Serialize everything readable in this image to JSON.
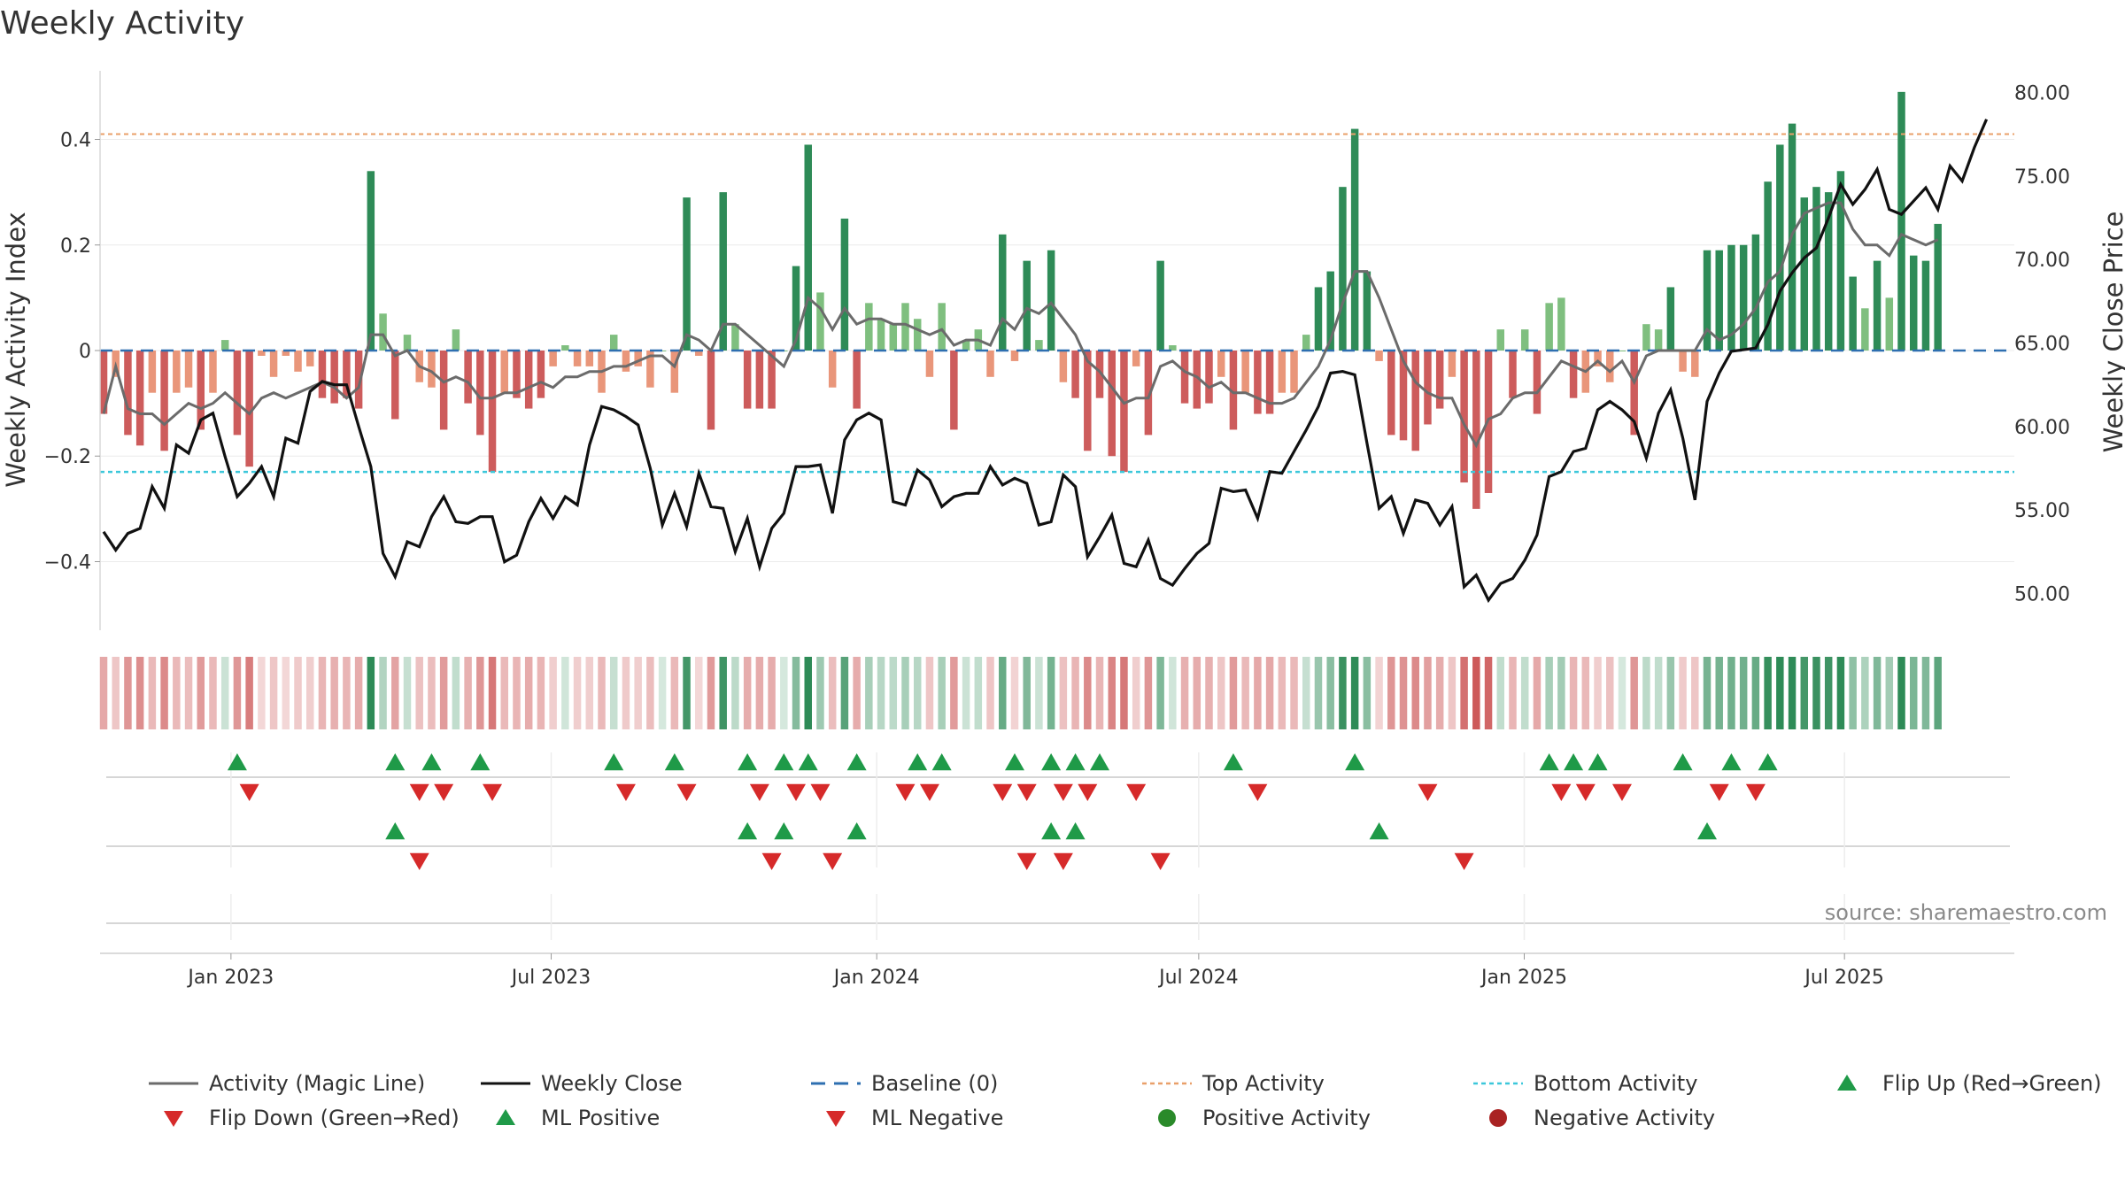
{
  "chart_data": {
    "type": "bar",
    "title": "Weekly Activity",
    "source": "source: sharemaestro.com",
    "left_axis": {
      "label": "Weekly Activity Index",
      "ylim": [
        -0.53,
        0.53
      ],
      "ticks": [
        0.4,
        0.2,
        0,
        -0.2,
        -0.4
      ],
      "tick_labels": [
        "0.4",
        "0.2",
        "0",
        "−0.2",
        "−0.4"
      ]
    },
    "right_axis": {
      "label": "Weekly Close Price",
      "ylim": [
        47.8,
        81.3
      ],
      "ticks": [
        80,
        75,
        70,
        65,
        60,
        55,
        50
      ],
      "tick_labels": [
        "80.00",
        "75.00",
        "70.00",
        "65.00",
        "60.00",
        "55.00",
        "50.00"
      ]
    },
    "x_axis": {
      "start": "2022-10-21",
      "end": "2025-10-03",
      "ticks": [
        {
          "date": "2023-01-01",
          "label": "Jan 2023"
        },
        {
          "date": "2023-07-01",
          "label": "Jul 2023"
        },
        {
          "date": "2024-01-01",
          "label": "Jan 2024"
        },
        {
          "date": "2024-07-01",
          "label": "Jul 2024"
        },
        {
          "date": "2025-01-01",
          "label": "Jan 2025"
        },
        {
          "date": "2025-07-01",
          "label": "Jul 2025"
        }
      ]
    },
    "reference_lines": {
      "baseline": 0,
      "top_activity": 0.41,
      "bottom_activity": -0.23
    },
    "week_count": 158,
    "activity": [
      -0.12,
      -0.05,
      -0.16,
      -0.18,
      -0.08,
      -0.19,
      -0.08,
      -0.07,
      -0.15,
      -0.08,
      0.02,
      -0.16,
      -0.22,
      -0.01,
      -0.05,
      -0.01,
      -0.04,
      -0.03,
      -0.09,
      -0.1,
      -0.09,
      -0.11,
      0.34,
      0.07,
      -0.13,
      0.03,
      -0.06,
      -0.07,
      -0.15,
      0.04,
      -0.1,
      -0.16,
      -0.23,
      -0.08,
      -0.09,
      -0.11,
      -0.09,
      -0.03,
      0.01,
      -0.03,
      -0.03,
      -0.08,
      0.03,
      -0.04,
      -0.03,
      -0.07,
      0.0,
      -0.08,
      0.29,
      -0.01,
      -0.15,
      0.3,
      0.05,
      -0.11,
      -0.11,
      -0.11,
      0.0,
      0.16,
      0.39,
      0.11,
      -0.07,
      0.25,
      -0.11,
      0.09,
      0.06,
      0.05,
      0.09,
      0.06,
      -0.05,
      0.09,
      -0.15,
      0.02,
      0.04,
      -0.05,
      0.22,
      -0.02,
      0.17,
      0.02,
      0.19,
      -0.06,
      -0.09,
      -0.19,
      -0.09,
      -0.2,
      -0.23,
      -0.03,
      -0.16,
      0.17,
      0.01,
      -0.1,
      -0.11,
      -0.1,
      -0.05,
      -0.15,
      -0.08,
      -0.12,
      -0.12,
      -0.08,
      -0.08,
      0.03,
      0.12,
      0.15,
      0.31,
      0.42,
      0.15,
      -0.02,
      -0.16,
      -0.17,
      -0.19,
      -0.14,
      -0.11,
      -0.05,
      -0.25,
      -0.3,
      -0.27,
      0.04,
      -0.09,
      0.04,
      -0.12,
      0.09,
      0.1,
      -0.09,
      -0.08,
      -0.03,
      -0.06,
      0.0,
      -0.16,
      0.05,
      0.04,
      0.12,
      -0.04,
      -0.05,
      0.19,
      0.19,
      0.2,
      0.2,
      0.22,
      0.32,
      0.39,
      0.43,
      0.29,
      0.31,
      0.3,
      0.34,
      0.14,
      0.08,
      0.17,
      0.1,
      0.49,
      0.18,
      0.17,
      0.24
    ],
    "magic_line": [
      -0.12,
      -0.03,
      -0.11,
      -0.12,
      -0.12,
      -0.14,
      -0.12,
      -0.1,
      -0.11,
      -0.1,
      -0.08,
      -0.1,
      -0.12,
      -0.09,
      -0.08,
      -0.09,
      -0.08,
      -0.07,
      -0.06,
      -0.07,
      -0.09,
      -0.07,
      0.03,
      0.03,
      -0.01,
      0.0,
      -0.03,
      -0.04,
      -0.06,
      -0.05,
      -0.06,
      -0.09,
      -0.09,
      -0.08,
      -0.08,
      -0.07,
      -0.06,
      -0.07,
      -0.05,
      -0.05,
      -0.04,
      -0.04,
      -0.03,
      -0.03,
      -0.02,
      -0.01,
      -0.01,
      -0.03,
      0.03,
      0.02,
      0.0,
      0.05,
      0.05,
      0.03,
      0.01,
      -0.01,
      -0.03,
      0.02,
      0.1,
      0.08,
      0.04,
      0.08,
      0.05,
      0.06,
      0.06,
      0.05,
      0.05,
      0.04,
      0.03,
      0.04,
      0.01,
      0.02,
      0.02,
      0.01,
      0.06,
      0.04,
      0.08,
      0.07,
      0.09,
      0.06,
      0.03,
      -0.02,
      -0.04,
      -0.07,
      -0.1,
      -0.09,
      -0.09,
      -0.03,
      -0.02,
      -0.04,
      -0.05,
      -0.07,
      -0.06,
      -0.08,
      -0.08,
      -0.09,
      -0.1,
      -0.1,
      -0.09,
      -0.06,
      -0.03,
      0.02,
      0.09,
      0.15,
      0.15,
      0.1,
      0.04,
      -0.02,
      -0.06,
      -0.08,
      -0.09,
      -0.09,
      -0.14,
      -0.18,
      -0.13,
      -0.12,
      -0.09,
      -0.08,
      -0.08,
      -0.05,
      -0.02,
      -0.03,
      -0.04,
      -0.02,
      -0.04,
      -0.02,
      -0.06,
      -0.01,
      0.0,
      0.0,
      0.0,
      0.0,
      0.04,
      0.02,
      0.03,
      0.05,
      0.08,
      0.13,
      0.15,
      0.22,
      0.26,
      0.27,
      0.28,
      0.28,
      0.23,
      0.2,
      0.2,
      0.18,
      0.22,
      0.21,
      0.2,
      0.21
    ],
    "weekly_close": [
      53.7,
      52.6,
      53.6,
      53.9,
      56.4,
      55.1,
      58.9,
      58.4,
      60.4,
      60.8,
      58.2,
      55.8,
      56.6,
      57.6,
      55.8,
      59.3,
      59.0,
      62.1,
      62.7,
      62.5,
      62.5,
      60.0,
      57.6,
      52.4,
      51.0,
      53.1,
      52.8,
      54.6,
      55.8,
      54.3,
      54.2,
      54.6,
      54.6,
      51.9,
      52.3,
      54.3,
      55.7,
      54.5,
      55.8,
      55.3,
      58.9,
      61.2,
      61.0,
      60.6,
      60.1,
      57.5,
      54.1,
      56.0,
      54.0,
      57.2,
      55.2,
      55.1,
      52.5,
      54.5,
      51.6,
      53.9,
      54.8,
      57.6,
      57.6,
      57.7,
      54.8,
      59.2,
      60.4,
      60.8,
      60.4,
      55.5,
      55.3,
      57.4,
      56.8,
      55.2,
      55.8,
      56.0,
      56.0,
      57.6,
      56.5,
      56.9,
      56.6,
      54.1,
      54.3,
      57.1,
      56.4,
      52.2,
      53.4,
      54.7,
      51.8,
      51.6,
      53.2,
      50.9,
      50.5,
      51.5,
      52.4,
      53.0,
      56.3,
      56.1,
      56.2,
      54.5,
      57.3,
      57.2,
      58.5,
      59.8,
      61.2,
      63.2,
      63.3,
      63.1,
      59.0,
      55.1,
      55.8,
      53.6,
      55.6,
      55.4,
      54.1,
      55.2,
      50.4,
      51.1,
      49.6,
      50.6,
      50.9,
      52.0,
      53.5,
      57.0,
      57.3,
      58.5,
      58.7,
      61.0,
      61.5,
      61.0,
      60.3,
      58.1,
      60.8,
      62.2,
      59.3,
      55.6,
      61.5,
      63.2,
      64.5,
      64.6,
      64.7,
      66.1,
      68.1,
      69.2,
      70.1,
      70.7,
      72.5,
      74.5,
      73.3,
      74.2,
      75.4,
      73.0,
      72.7,
      73.5,
      74.3,
      73.0,
      75.6,
      74.7,
      76.7,
      78.4
    ],
    "flip_up_weeks": [
      11,
      24,
      27,
      31,
      42,
      47,
      53,
      56,
      58,
      62,
      67,
      69,
      75,
      78,
      80,
      82,
      93,
      103,
      119,
      121,
      123,
      130,
      134,
      137
    ],
    "flip_down_weeks": [
      12,
      26,
      28,
      32,
      43,
      48,
      54,
      57,
      59,
      66,
      68,
      74,
      76,
      79,
      81,
      85,
      95,
      109,
      120,
      122,
      125,
      133,
      136
    ],
    "ml_positive_weeks": [
      24,
      53,
      56,
      62,
      78,
      80,
      105,
      132
    ],
    "ml_negative_weeks": [
      26,
      55,
      60,
      76,
      79,
      87,
      112
    ],
    "legend": [
      {
        "label": "Activity (Magic Line)",
        "kind": "line",
        "color": "#6b6b6b"
      },
      {
        "label": "Weekly Close",
        "kind": "line",
        "color": "#111111"
      },
      {
        "label": "Baseline (0)",
        "kind": "dashed",
        "color": "#2e6fb0"
      },
      {
        "label": "Top Activity",
        "kind": "dotted",
        "color": "#e9a06a"
      },
      {
        "label": "Bottom Activity",
        "kind": "dotted",
        "color": "#3cc7da"
      },
      {
        "label": "Flip Up (Red→Green)",
        "kind": "tri-up",
        "color": "#1f9a48"
      },
      {
        "label": "Flip Down (Green→Red)",
        "kind": "tri-down",
        "color": "#d62a2a"
      },
      {
        "label": "ML Positive",
        "kind": "tri-up",
        "color": "#1f9a48"
      },
      {
        "label": "ML Negative",
        "kind": "tri-down",
        "color": "#d62a2a"
      },
      {
        "label": "Positive Activity",
        "kind": "dot",
        "color": "#2a8a2a"
      },
      {
        "label": "Negative Activity",
        "kind": "dot",
        "color": "#a92222"
      }
    ],
    "colors": {
      "pos_strong": "#2e8b57",
      "pos_weak": "#7fbf7f",
      "neg_strong": "#cd5c5c",
      "neg_weak": "#e9967a",
      "magic_line": "#6b6b6b",
      "close_line": "#111111"
    }
  }
}
